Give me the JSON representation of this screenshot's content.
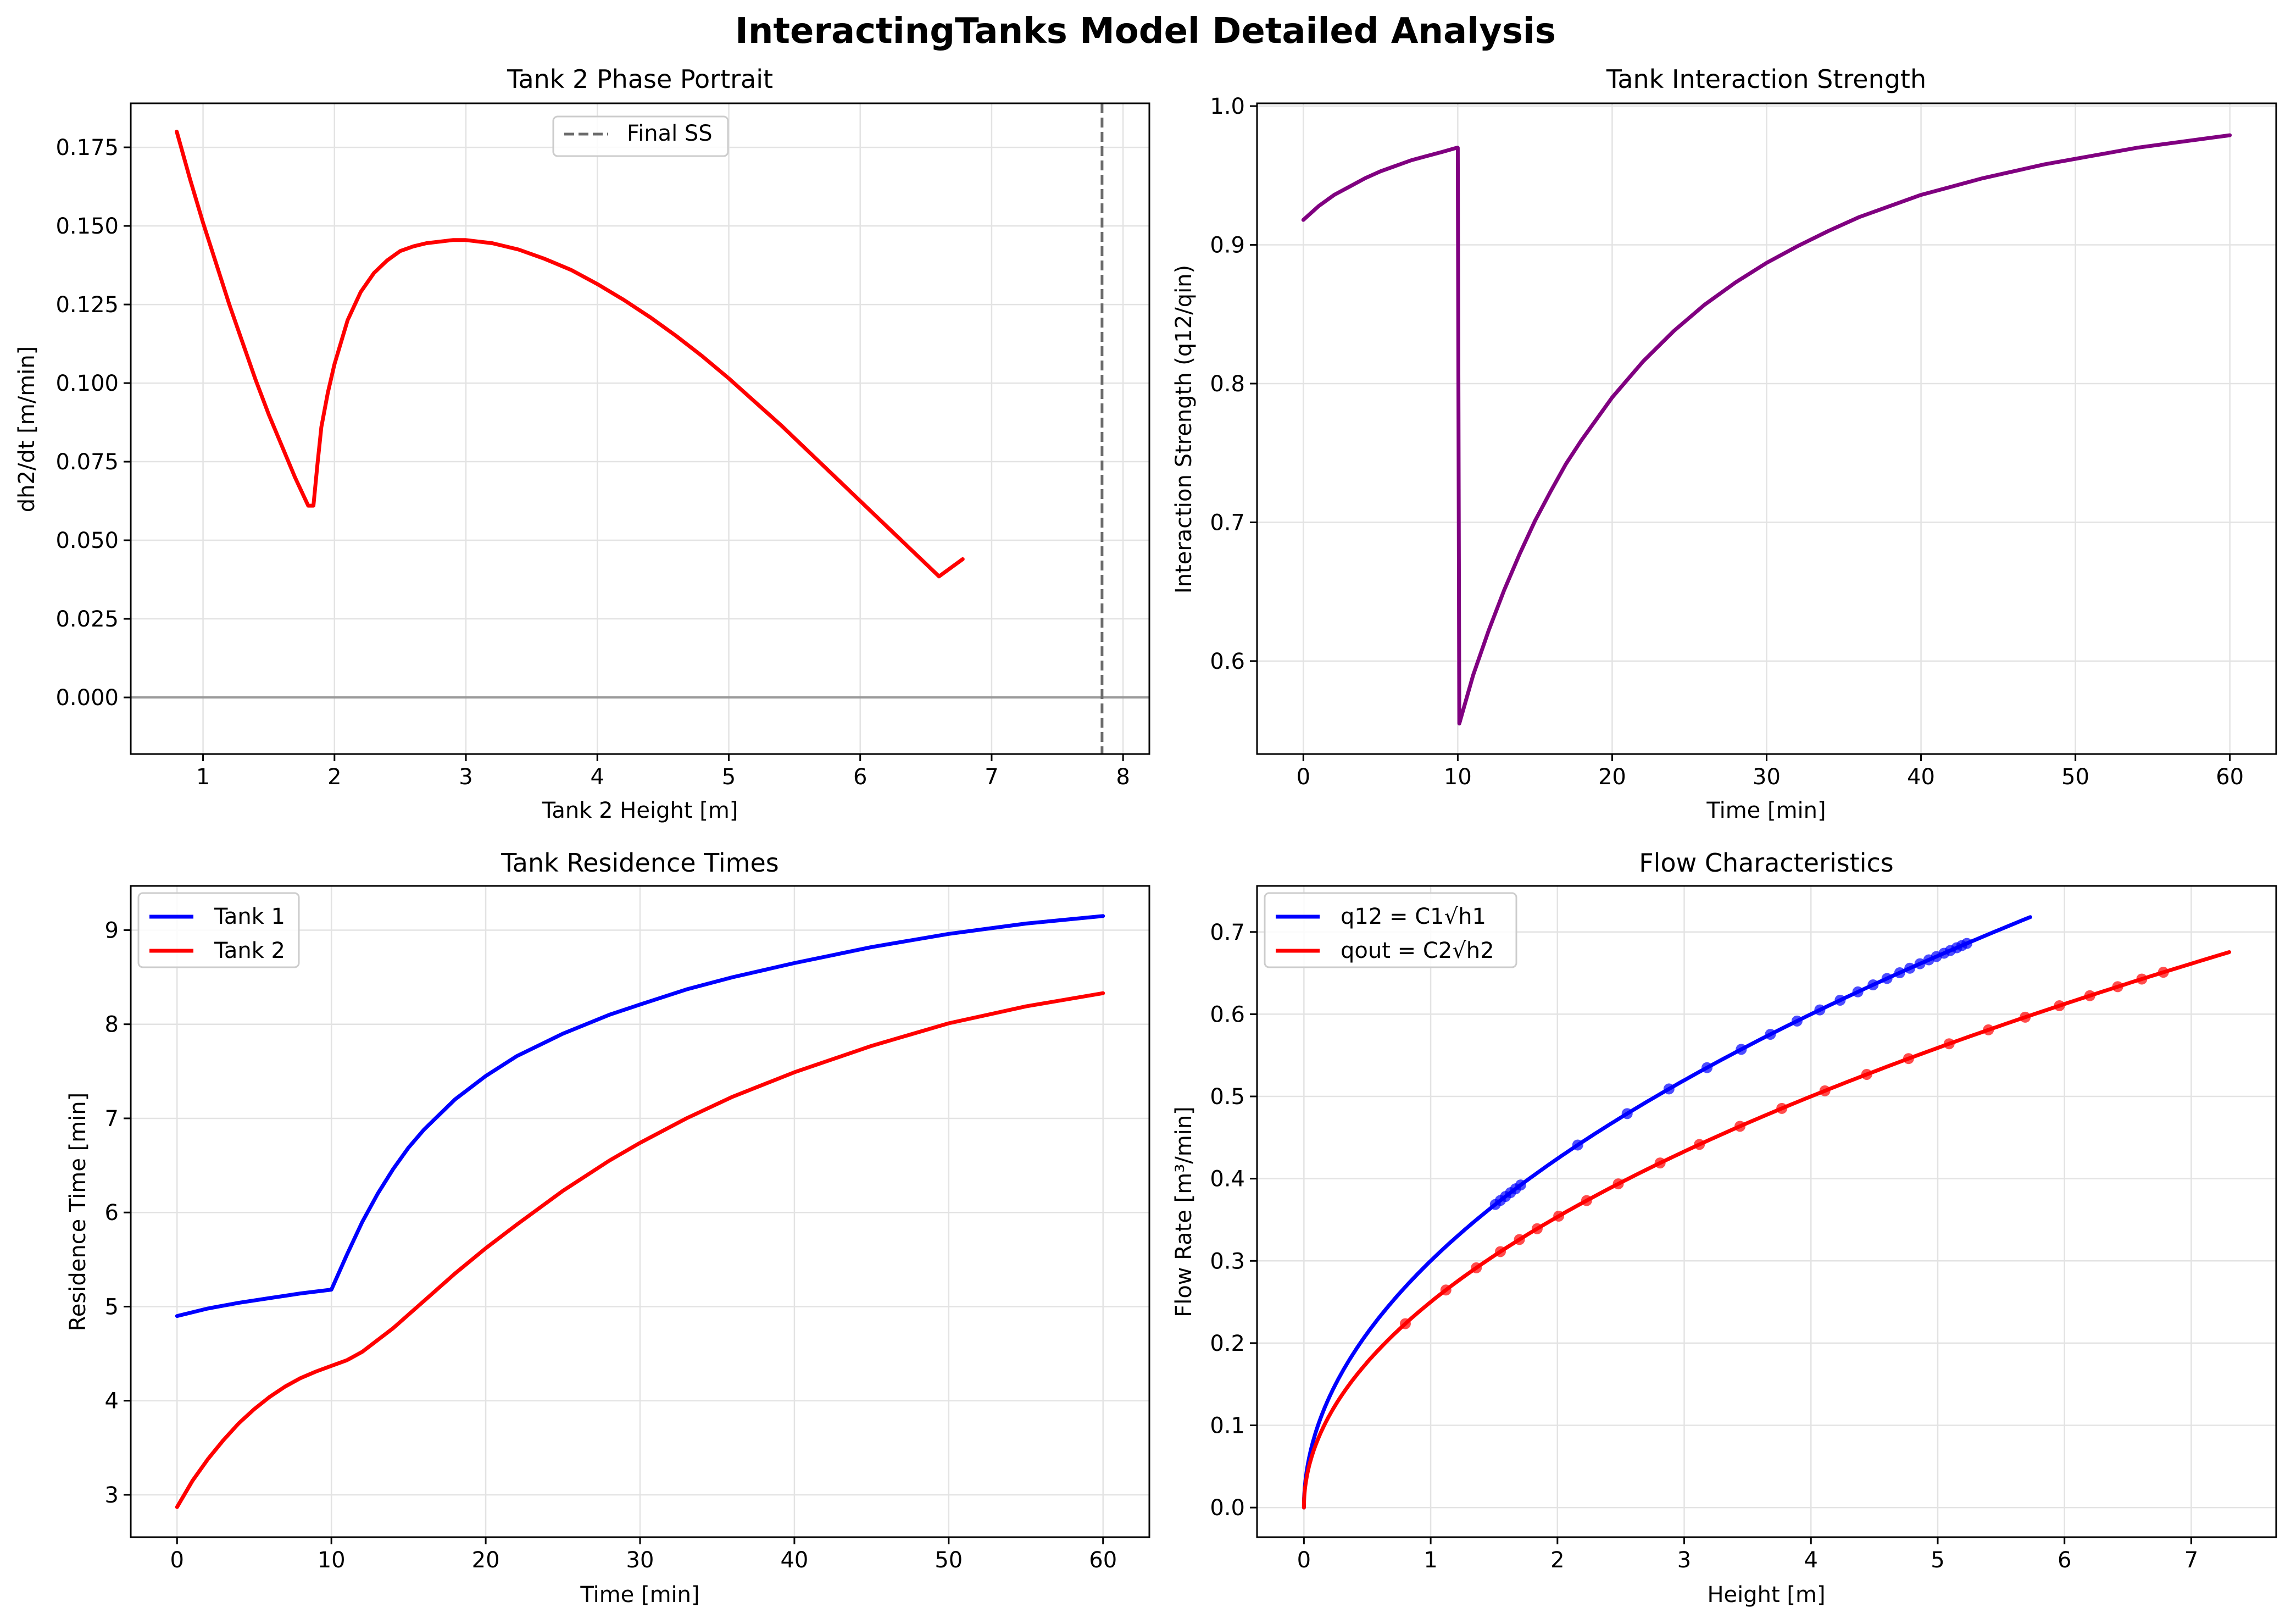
{
  "figure": {
    "title": "InteractingTanks Model Detailed Analysis"
  },
  "colors": {
    "red": "#ff0000",
    "blue": "#0000ff",
    "purple": "#800080",
    "gray_dashed": "#6b6b6b",
    "zero_line": "#9a9a9a",
    "grid": "#e3e3e3"
  },
  "chart_data": [
    {
      "id": "phase",
      "type": "line",
      "title": "Tank 2 Phase Portrait",
      "xlabel": "Tank 2 Height [m]",
      "ylabel": "dh2/dt [m/min]",
      "xlim": [
        0.45,
        8.2
      ],
      "ylim": [
        -0.018,
        0.189
      ],
      "xticks": [
        1,
        2,
        3,
        4,
        5,
        6,
        7,
        8
      ],
      "yticks": [
        0.0,
        0.025,
        0.05,
        0.075,
        0.1,
        0.125,
        0.15,
        0.175
      ],
      "ytick_decimals": 3,
      "legend": {
        "position": "top-center",
        "entries": [
          {
            "label": "Final SS",
            "style": "dashed",
            "color": "#6b6b6b"
          }
        ]
      },
      "hlines": [
        {
          "y": 0,
          "color": "#9a9a9a"
        }
      ],
      "vlines": [
        {
          "x": 7.84,
          "label": "Final SS",
          "style": "dashed",
          "color": "#6b6b6b"
        }
      ],
      "series": [
        {
          "name": "Tank 2",
          "color": "#ff0000",
          "x": [
            0.8,
            0.9,
            1.0,
            1.1,
            1.2,
            1.3,
            1.4,
            1.5,
            1.6,
            1.7,
            1.8,
            1.84,
            1.87,
            1.9,
            1.95,
            2.0,
            2.1,
            2.2,
            2.3,
            2.4,
            2.5,
            2.6,
            2.7,
            2.8,
            2.9,
            3.0,
            3.1,
            3.2,
            3.4,
            3.6,
            3.8,
            4.0,
            4.2,
            4.4,
            4.6,
            4.8,
            5.0,
            5.2,
            5.4,
            5.6,
            5.8,
            6.0,
            6.2,
            6.4,
            6.6,
            6.78
          ],
          "y": [
            0.18,
            0.165,
            0.151,
            0.138,
            0.125,
            0.113,
            0.101,
            0.09,
            0.08,
            0.07,
            0.061,
            0.061,
            0.074,
            0.086,
            0.097,
            0.106,
            0.12,
            0.129,
            0.135,
            0.139,
            0.142,
            0.1435,
            0.1445,
            0.145,
            0.1455,
            0.1455,
            0.145,
            0.1445,
            0.1425,
            0.1395,
            0.136,
            0.1315,
            0.1265,
            0.121,
            0.115,
            0.1085,
            0.1015,
            0.094,
            0.0865,
            0.0785,
            0.0705,
            0.0625,
            0.0545,
            0.0465,
            0.0385,
            0.044
          ]
        }
      ]
    },
    {
      "id": "strength",
      "type": "line",
      "title": "Tank Interaction Strength",
      "xlabel": "Time [min]",
      "ylabel": "Interaction Strength (q12/qin)",
      "xlim": [
        -3,
        63
      ],
      "ylim": [
        0.533,
        1.002
      ],
      "xticks": [
        0,
        10,
        20,
        30,
        40,
        50,
        60
      ],
      "yticks": [
        0.6,
        0.7,
        0.8,
        0.9,
        1.0
      ],
      "ytick_decimals": 1,
      "series": [
        {
          "name": "q12/qin",
          "color": "#800080",
          "x": [
            0,
            1,
            2,
            3,
            4,
            5,
            6,
            7,
            8,
            9,
            9.95,
            10.0,
            10.1,
            11,
            12,
            13,
            14,
            15,
            16,
            17,
            18,
            20,
            22,
            24,
            26,
            28,
            30,
            32,
            34,
            36,
            38,
            40,
            42,
            44,
            46,
            48,
            50,
            52,
            54,
            56,
            58,
            60
          ],
          "y": [
            0.918,
            0.928,
            0.936,
            0.942,
            0.948,
            0.953,
            0.957,
            0.961,
            0.964,
            0.967,
            0.97,
            0.97,
            0.555,
            0.59,
            0.622,
            0.651,
            0.677,
            0.701,
            0.722,
            0.742,
            0.759,
            0.79,
            0.816,
            0.838,
            0.857,
            0.873,
            0.887,
            0.899,
            0.91,
            0.92,
            0.928,
            0.936,
            0.942,
            0.948,
            0.953,
            0.958,
            0.962,
            0.966,
            0.97,
            0.973,
            0.976,
            0.979
          ]
        }
      ]
    },
    {
      "id": "residence",
      "type": "line",
      "title": "Tank Residence Times",
      "xlabel": "Time [min]",
      "ylabel": "Residence Time [min]",
      "xlim": [
        -3,
        63
      ],
      "ylim": [
        2.55,
        9.47
      ],
      "xticks": [
        0,
        10,
        20,
        30,
        40,
        50,
        60
      ],
      "yticks": [
        3,
        4,
        5,
        6,
        7,
        8,
        9
      ],
      "ytick_decimals": 0,
      "legend": {
        "position": "top-left",
        "entries": [
          {
            "label": "Tank 1",
            "style": "solid",
            "color": "#0000ff"
          },
          {
            "label": "Tank 2",
            "style": "solid",
            "color": "#ff0000"
          }
        ]
      },
      "series": [
        {
          "name": "Tank 1",
          "color": "#0000ff",
          "x": [
            0,
            2,
            4,
            6,
            8,
            10,
            11,
            12,
            13,
            14,
            15,
            16,
            18,
            20,
            22,
            25,
            28,
            30,
            33,
            36,
            40,
            45,
            50,
            55,
            60
          ],
          "y": [
            4.9,
            4.98,
            5.04,
            5.09,
            5.14,
            5.18,
            5.55,
            5.9,
            6.2,
            6.46,
            6.69,
            6.88,
            7.2,
            7.45,
            7.66,
            7.9,
            8.1,
            8.21,
            8.37,
            8.5,
            8.65,
            8.82,
            8.96,
            9.07,
            9.15
          ]
        },
        {
          "name": "Tank 2",
          "color": "#ff0000",
          "x": [
            0,
            1,
            2,
            3,
            4,
            5,
            6,
            7,
            8,
            9,
            10,
            11,
            12,
            14,
            16,
            18,
            20,
            22,
            25,
            28,
            30,
            33,
            36,
            40,
            45,
            50,
            55,
            60
          ],
          "y": [
            2.87,
            3.15,
            3.38,
            3.58,
            3.76,
            3.91,
            4.04,
            4.15,
            4.24,
            4.31,
            4.37,
            4.43,
            4.52,
            4.77,
            5.06,
            5.35,
            5.62,
            5.87,
            6.23,
            6.55,
            6.74,
            7.0,
            7.23,
            7.49,
            7.77,
            8.01,
            8.19,
            8.33
          ]
        }
      ]
    },
    {
      "id": "flow",
      "type": "line",
      "title": "Flow Characteristics",
      "xlabel": "Height [m]",
      "ylabel": "Flow Rate [m³/min]",
      "xlim": [
        -0.37,
        7.67
      ],
      "ylim": [
        -0.036,
        0.756
      ],
      "xticks": [
        0,
        1,
        2,
        3,
        4,
        5,
        6,
        7
      ],
      "yticks": [
        0.0,
        0.1,
        0.2,
        0.3,
        0.4,
        0.5,
        0.6,
        0.7
      ],
      "ytick_decimals": 1,
      "legend": {
        "position": "top-left",
        "entries": [
          {
            "label": "q12 = C1√h1",
            "style": "solid",
            "color": "#0000ff"
          },
          {
            "label": "qout = C2√h2",
            "style": "solid",
            "color": "#ff0000"
          }
        ]
      },
      "series": [
        {
          "name": "q12 = C1√h1",
          "color": "#0000ff",
          "function": "sqrt",
          "coef": 0.3,
          "x_range": [
            0,
            5.73
          ],
          "markers_x": [
            1.51,
            1.55,
            1.59,
            1.63,
            1.67,
            1.71,
            2.16,
            2.55,
            2.88,
            3.18,
            3.45,
            3.68,
            3.89,
            4.07,
            4.23,
            4.37,
            4.49,
            4.6,
            4.7,
            4.78,
            4.86,
            4.93,
            4.99,
            5.05,
            5.1,
            5.15,
            5.19,
            5.23
          ]
        },
        {
          "name": "qout = C2√h2",
          "color": "#ff0000",
          "function": "sqrt",
          "coef": 0.25,
          "x_range": [
            0,
            7.3
          ],
          "markers_x": [
            0.8,
            1.12,
            1.36,
            1.55,
            1.7,
            1.84,
            2.01,
            2.23,
            2.48,
            2.81,
            3.12,
            3.44,
            3.77,
            4.11,
            4.44,
            4.77,
            5.09,
            5.4,
            5.69,
            5.96,
            6.2,
            6.42,
            6.61,
            6.78
          ]
        }
      ]
    }
  ]
}
